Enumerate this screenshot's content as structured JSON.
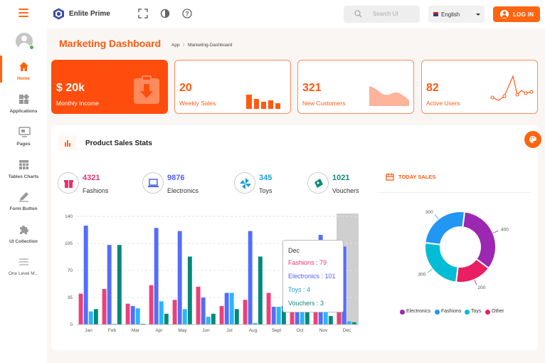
{
  "app": {
    "brand": "Enlite Prime"
  },
  "topbar": {
    "search_placeholder": "Search UI",
    "language": "English",
    "login_label": "LOG IN"
  },
  "sidebar": {
    "items": [
      {
        "label": "Home",
        "icon": "home-icon",
        "active": true
      },
      {
        "label": "Applications",
        "icon": "apps-icon"
      },
      {
        "label": "Pages",
        "icon": "pages-icon"
      },
      {
        "label": "Tables Charts",
        "icon": "table-icon"
      },
      {
        "label": "Form Button",
        "icon": "pen-icon"
      },
      {
        "label": "UI Collection",
        "icon": "puzzle-icon"
      },
      {
        "label": "One Level M...",
        "icon": "menu-icon"
      }
    ]
  },
  "page": {
    "title": "Marketing Dashboard",
    "breadcrumb": {
      "root": "App",
      "sep": "/",
      "current": "Marketing-Dashboard"
    }
  },
  "stat_cards": [
    {
      "value": "$ 20k",
      "label": "Monthly Income",
      "icon": "clipboard-download-icon"
    },
    {
      "value": "20",
      "label": "Weekly Sales",
      "icon": "bar-chart-icon"
    },
    {
      "value": "321",
      "label": "New Customers",
      "icon": "area-chart-icon"
    },
    {
      "value": "82",
      "label": "Active Users",
      "icon": "line-chart-icon"
    }
  ],
  "panel": {
    "title": "Product Sales Stats",
    "today_label": "TODAY SALES"
  },
  "summary": [
    {
      "value": "4321",
      "label": "Fashions",
      "color": "#e8336d",
      "icon": "gift-icon"
    },
    {
      "value": "9876",
      "label": "Electronics",
      "color": "#5161f1",
      "icon": "laptop-icon"
    },
    {
      "value": "345",
      "label": "Toys",
      "color": "#1c9fdb",
      "icon": "pinwheel-icon"
    },
    {
      "value": "1021",
      "label": "Vouchers",
      "color": "#0e8a77",
      "icon": "ticket-icon"
    }
  ],
  "colors": {
    "accent": "#ff5a10",
    "fashions": "#ec407a",
    "electronics": "#536dfe",
    "toys": "#29b6f6",
    "vouchers": "#00897b",
    "pie_electronics": "#9c27b0",
    "pie_fashions": "#2196f3",
    "pie_toys": "#00bcd4",
    "pie_other": "#e91e63"
  },
  "tooltip": {
    "title": "Dec",
    "rows": [
      {
        "label": "Fashions",
        "value": "79",
        "color": "#e8336d"
      },
      {
        "label": "Electronics",
        "value": "101",
        "color": "#5161f1"
      },
      {
        "label": "Toys",
        "value": "4",
        "color": "#1c9fdb"
      },
      {
        "label": "Vouchers",
        "value": "3",
        "color": "#0e8a77"
      }
    ]
  },
  "chart_data": [
    {
      "type": "bar",
      "categories": [
        "Jan",
        "Feb",
        "Mar",
        "Apr",
        "May",
        "Jun",
        "Jul",
        "Aug",
        "Sept",
        "Oct",
        "Nov",
        "Dec"
      ],
      "ylim": [
        0,
        140
      ],
      "yticks": [
        0,
        35,
        70,
        105,
        140
      ],
      "grid": true,
      "highlight": "Dec",
      "series": [
        {
          "name": "Fashions",
          "values": [
            40,
            46,
            27,
            51,
            32,
            49,
            24,
            32,
            41,
            30,
            22,
            79
          ]
        },
        {
          "name": "Electronics",
          "values": [
            128,
            103,
            24,
            125,
            121,
            35,
            41,
            121,
            23,
            45,
            116,
            101
          ]
        },
        {
          "name": "Toys",
          "values": [
            17,
            1,
            21,
            30,
            20,
            10,
            41,
            2,
            23,
            22,
            26,
            4
          ]
        },
        {
          "name": "Vouchers",
          "values": [
            20,
            103,
            1,
            14,
            88,
            14,
            20,
            88,
            24,
            71,
            11,
            3
          ]
        }
      ]
    },
    {
      "type": "pie",
      "donut": true,
      "legend": "bottom",
      "labels": [
        "Electronics",
        "Fashions",
        "Toys",
        "Other"
      ],
      "values": [
        400,
        300,
        300,
        200
      ],
      "slice_labels": [
        "400",
        "300",
        "300",
        "200"
      ]
    }
  ]
}
